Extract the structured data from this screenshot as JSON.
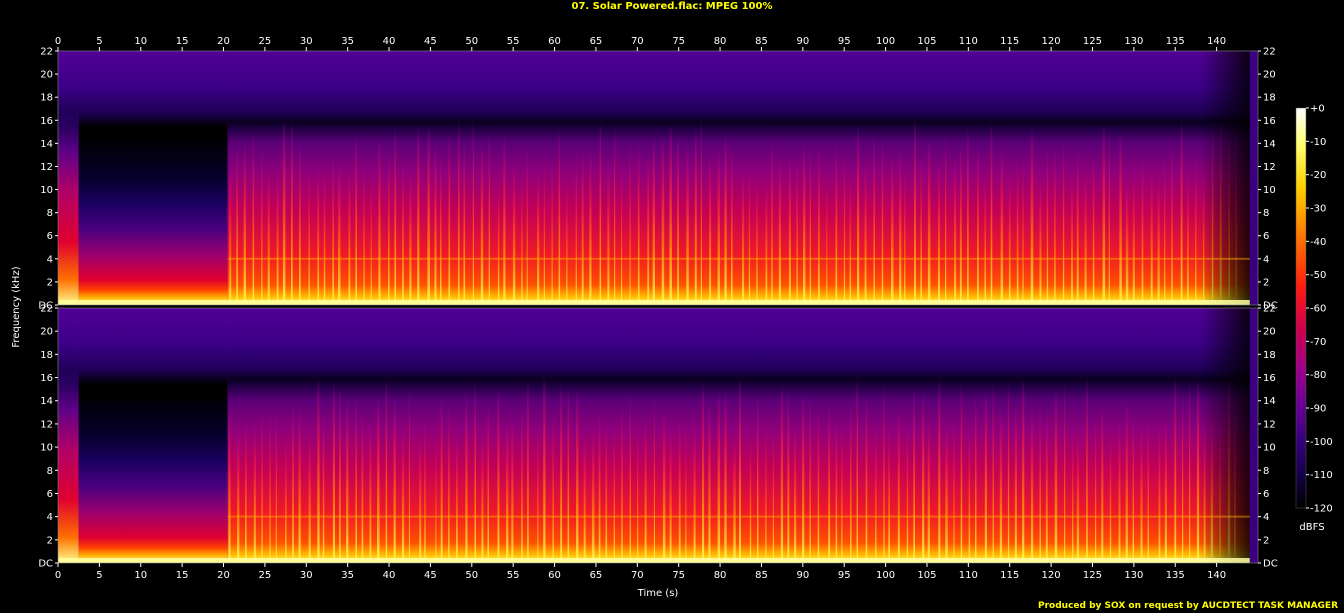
{
  "chart_data": {
    "type": "heatmap",
    "title": "07. Solar Powered.flac: MPEG 100%",
    "xlabel": "Time (s)",
    "ylabel": "Frequency (kHz)",
    "xlim": [
      0,
      145
    ],
    "ylim": [
      0,
      22
    ],
    "x_ticks": [
      "0",
      "5",
      "10",
      "15",
      "20",
      "25",
      "30",
      "35",
      "40",
      "45",
      "50",
      "55",
      "60",
      "65",
      "70",
      "75",
      "80",
      "85",
      "90",
      "95",
      "100",
      "105",
      "110",
      "115",
      "120",
      "125",
      "130",
      "135",
      "140"
    ],
    "y_ticks": [
      "DC",
      "2",
      "4",
      "6",
      "8",
      "10",
      "12",
      "14",
      "16",
      "18",
      "20",
      "22"
    ],
    "channels": [
      "channel-1",
      "channel-2"
    ],
    "colorbar": {
      "label": "dBFS",
      "ticks": [
        "+0",
        "-10",
        "-20",
        "-30",
        "-40",
        "-50",
        "-60",
        "-70",
        "-80",
        "-90",
        "-100",
        "-110",
        "-120"
      ],
      "range": [
        -120,
        0
      ]
    },
    "features": {
      "intro_end_s": 2.5,
      "quiet_section_s": [
        2.5,
        20.5
      ],
      "music_start_s": 20.5,
      "music_end_s": 144,
      "lowpass_cutoff_khz": 16
    }
  },
  "credit": "Produced by SOX on request by AUCDTECT TASK MANAGER",
  "colors": {
    "background": "#000000",
    "title": "#ffff00",
    "gradient": [
      "#ffffff",
      "#ffff60",
      "#ffd000",
      "#ff8000",
      "#ff2000",
      "#e00030",
      "#c0006a",
      "#8c0090",
      "#5a0090",
      "#30006a",
      "#140040",
      "#000000"
    ]
  }
}
